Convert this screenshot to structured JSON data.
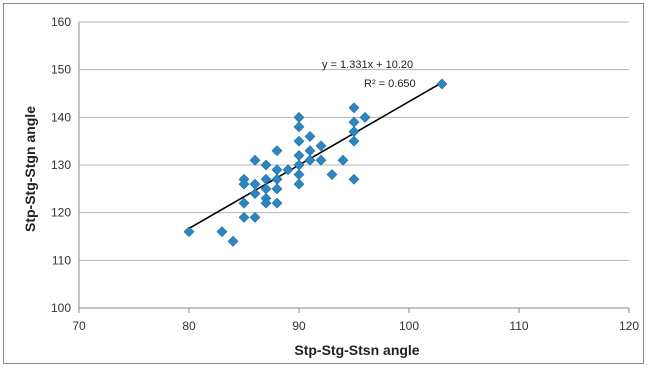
{
  "chart_data": {
    "type": "scatter",
    "title": "",
    "xlabel": "Stp-Stg-Stsn angle",
    "ylabel": "Stp-Stg-Stgn angle",
    "xlim": [
      70,
      120
    ],
    "ylim": [
      100,
      160
    ],
    "x_ticks": [
      70,
      80,
      90,
      100,
      110,
      120
    ],
    "y_ticks": [
      100,
      110,
      120,
      130,
      140,
      150,
      160
    ],
    "grid": "horizontal",
    "series": [
      {
        "marker": "diamond",
        "color": "#2e86c1",
        "points": [
          [
            80,
            116
          ],
          [
            83,
            116
          ],
          [
            84,
            114
          ],
          [
            85,
            127
          ],
          [
            85,
            126
          ],
          [
            85,
            122
          ],
          [
            85,
            119
          ],
          [
            86,
            131
          ],
          [
            86,
            126
          ],
          [
            86,
            124
          ],
          [
            86,
            119
          ],
          [
            87,
            130
          ],
          [
            87,
            127
          ],
          [
            87,
            125
          ],
          [
            87,
            123
          ],
          [
            87,
            122
          ],
          [
            88,
            133
          ],
          [
            88,
            129
          ],
          [
            88,
            127
          ],
          [
            88,
            125
          ],
          [
            88,
            122
          ],
          [
            89,
            129
          ],
          [
            90,
            140
          ],
          [
            90,
            138
          ],
          [
            90,
            135
          ],
          [
            90,
            132
          ],
          [
            90,
            130
          ],
          [
            90,
            128
          ],
          [
            90,
            126
          ],
          [
            91,
            136
          ],
          [
            91,
            133
          ],
          [
            91,
            131
          ],
          [
            92,
            134
          ],
          [
            92,
            131
          ],
          [
            93,
            128
          ],
          [
            94,
            131
          ],
          [
            95,
            142
          ],
          [
            95,
            139
          ],
          [
            95,
            137
          ],
          [
            95,
            135
          ],
          [
            95,
            127
          ],
          [
            96,
            140
          ],
          [
            103,
            147
          ]
        ]
      }
    ],
    "trendline": {
      "slope": 1.331,
      "intercept": 10.2,
      "x_range": [
        80,
        103
      ],
      "color": "#000000"
    },
    "annotations": {
      "equation": "y = 1.331x + 10.20",
      "r_squared": "R² = 0.650"
    }
  }
}
